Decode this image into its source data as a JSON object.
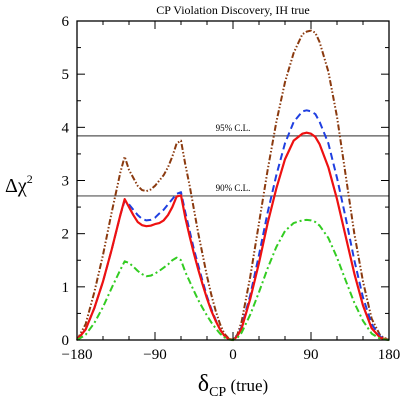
{
  "chart_data": {
    "type": "line",
    "title": "CP Violation Discovery, IH true",
    "xlabel_main": "δ",
    "xlabel_sub": "CP",
    "xlabel_rest": " (true)",
    "ylabel_main": "Δχ",
    "ylabel_sup": "2",
    "xlim": [
      -180,
      180
    ],
    "ylim": [
      0,
      6
    ],
    "xticks": [
      -180,
      -90,
      0,
      90,
      180
    ],
    "xtick_labels": [
      "−180",
      "−90",
      "0",
      "90",
      "180"
    ],
    "yticks": [
      0,
      1,
      2,
      3,
      4,
      5,
      6
    ],
    "ytick_labels": [
      "0",
      "1",
      "2",
      "3",
      "4",
      "5",
      "6"
    ],
    "grid": false,
    "reference_lines": [
      {
        "label": "95% C.L.",
        "y": 3.84,
        "color": "#555555"
      },
      {
        "label": "90% C.L.",
        "y": 2.71,
        "color": "#555555"
      }
    ],
    "series": [
      {
        "style": "dash-dot-dot",
        "color": "#8B3A0F",
        "x": [
          -180,
          -170,
          -160,
          -150,
          -140,
          -130,
          -125,
          -120,
          -115,
          -110,
          -105,
          -100,
          -95,
          -90,
          -85,
          -80,
          -75,
          -70,
          -65,
          -60,
          -55,
          -50,
          -45,
          -40,
          -35,
          -30,
          -25,
          -20,
          -15,
          -10,
          -5,
          0,
          5,
          10,
          20,
          30,
          40,
          50,
          60,
          70,
          80,
          85,
          90,
          95,
          100,
          110,
          120,
          130,
          140,
          150,
          160,
          170,
          180
        ],
        "y": [
          0,
          0.3,
          0.9,
          1.6,
          2.4,
          3.15,
          3.45,
          3.2,
          3.05,
          2.9,
          2.82,
          2.8,
          2.83,
          2.9,
          3.0,
          3.1,
          3.25,
          3.45,
          3.7,
          3.75,
          3.3,
          2.9,
          2.45,
          2.0,
          1.6,
          1.2,
          0.85,
          0.55,
          0.3,
          0.12,
          0.03,
          0,
          0.1,
          0.35,
          1.2,
          2.2,
          3.2,
          4.1,
          4.85,
          5.4,
          5.75,
          5.8,
          5.82,
          5.78,
          5.6,
          5.05,
          4.2,
          3.1,
          2.0,
          1.1,
          0.4,
          0.08,
          0
        ]
      },
      {
        "style": "dashed",
        "color": "#1f3fe0",
        "x": [
          -180,
          -170,
          -160,
          -150,
          -140,
          -130,
          -125,
          -120,
          -115,
          -110,
          -105,
          -100,
          -95,
          -90,
          -85,
          -80,
          -75,
          -70,
          -65,
          -60,
          -55,
          -50,
          -45,
          -40,
          -35,
          -30,
          -25,
          -20,
          -15,
          -10,
          -5,
          0,
          5,
          10,
          20,
          30,
          40,
          50,
          60,
          70,
          80,
          85,
          90,
          95,
          100,
          110,
          120,
          130,
          140,
          150,
          160,
          170,
          180
        ],
        "y": [
          0,
          0.2,
          0.6,
          1.1,
          1.7,
          2.35,
          2.62,
          2.55,
          2.45,
          2.35,
          2.28,
          2.25,
          2.26,
          2.3,
          2.38,
          2.45,
          2.55,
          2.65,
          2.75,
          2.78,
          2.4,
          2.05,
          1.7,
          1.4,
          1.1,
          0.82,
          0.58,
          0.38,
          0.2,
          0.08,
          0.02,
          0,
          0.08,
          0.25,
          0.85,
          1.6,
          2.4,
          3.1,
          3.7,
          4.1,
          4.3,
          4.32,
          4.3,
          4.25,
          4.1,
          3.7,
          3.05,
          2.3,
          1.5,
          0.8,
          0.3,
          0.06,
          0
        ]
      },
      {
        "style": "solid",
        "color": "#ee1111",
        "x": [
          -180,
          -170,
          -160,
          -150,
          -140,
          -130,
          -125,
          -120,
          -115,
          -110,
          -105,
          -100,
          -95,
          -90,
          -85,
          -80,
          -75,
          -70,
          -65,
          -60,
          -55,
          -50,
          -45,
          -40,
          -35,
          -30,
          -25,
          -20,
          -15,
          -10,
          -5,
          0,
          5,
          10,
          20,
          30,
          40,
          50,
          60,
          70,
          80,
          85,
          90,
          95,
          100,
          110,
          120,
          130,
          140,
          150,
          160,
          170,
          180
        ],
        "y": [
          0,
          0.2,
          0.6,
          1.1,
          1.7,
          2.35,
          2.65,
          2.5,
          2.35,
          2.22,
          2.16,
          2.14,
          2.15,
          2.18,
          2.2,
          2.25,
          2.35,
          2.5,
          2.7,
          2.72,
          2.3,
          1.95,
          1.62,
          1.32,
          1.04,
          0.78,
          0.55,
          0.36,
          0.2,
          0.08,
          0.02,
          0,
          0.07,
          0.22,
          0.78,
          1.45,
          2.2,
          2.85,
          3.4,
          3.75,
          3.88,
          3.9,
          3.88,
          3.82,
          3.68,
          3.25,
          2.65,
          1.95,
          1.25,
          0.65,
          0.22,
          0.04,
          0
        ]
      },
      {
        "style": "dash-dot",
        "color": "#33cc22",
        "x": [
          -180,
          -170,
          -160,
          -150,
          -140,
          -130,
          -125,
          -120,
          -115,
          -110,
          -105,
          -100,
          -95,
          -90,
          -85,
          -80,
          -75,
          -70,
          -65,
          -60,
          -55,
          -50,
          -45,
          -40,
          -35,
          -30,
          -25,
          -20,
          -15,
          -10,
          -5,
          0,
          5,
          10,
          20,
          30,
          40,
          50,
          60,
          70,
          80,
          85,
          90,
          95,
          100,
          110,
          120,
          130,
          140,
          150,
          160,
          170,
          180
        ],
        "y": [
          0,
          0.1,
          0.32,
          0.62,
          0.98,
          1.32,
          1.48,
          1.45,
          1.38,
          1.3,
          1.24,
          1.2,
          1.21,
          1.25,
          1.3,
          1.36,
          1.42,
          1.5,
          1.55,
          1.5,
          1.28,
          1.1,
          0.92,
          0.75,
          0.6,
          0.46,
          0.33,
          0.22,
          0.12,
          0.05,
          0.01,
          0,
          0.04,
          0.14,
          0.48,
          0.9,
          1.35,
          1.75,
          2.05,
          2.2,
          2.25,
          2.26,
          2.25,
          2.22,
          2.15,
          1.92,
          1.55,
          1.12,
          0.7,
          0.36,
          0.12,
          0.02,
          0
        ]
      }
    ]
  }
}
